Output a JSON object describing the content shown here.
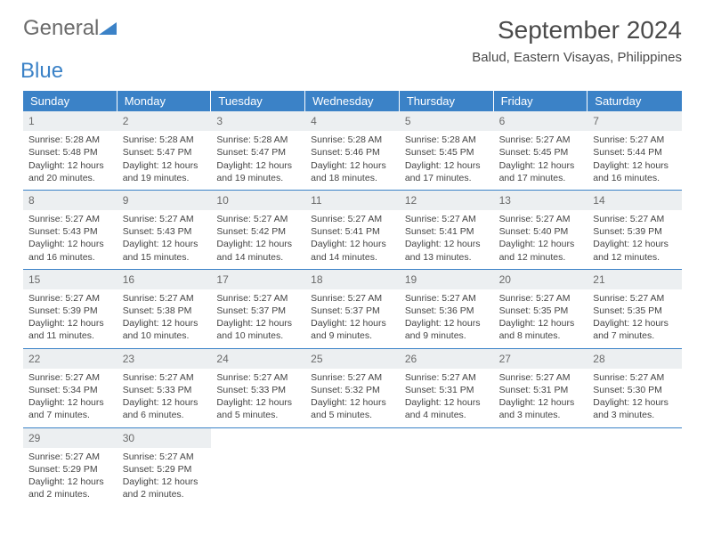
{
  "brand": {
    "name1": "General",
    "name2": "Blue"
  },
  "title": "September 2024",
  "location": "Balud, Eastern Visayas, Philippines",
  "colors": {
    "header_bg": "#3b82c7",
    "header_text": "#ffffff",
    "daynum_bg": "#eceff1",
    "daynum_text": "#6a6a6a",
    "body_text": "#444444",
    "rule": "#3b82c7"
  },
  "typography": {
    "title_fontsize": 28,
    "location_fontsize": 15,
    "weekday_fontsize": 13,
    "daynum_fontsize": 12,
    "body_fontsize": 10.5
  },
  "layout": {
    "columns": 7,
    "rows": 5
  },
  "weekdays": [
    "Sunday",
    "Monday",
    "Tuesday",
    "Wednesday",
    "Thursday",
    "Friday",
    "Saturday"
  ],
  "days": [
    {
      "n": "1",
      "sunrise": "Sunrise: 5:28 AM",
      "sunset": "Sunset: 5:48 PM",
      "daylight": "Daylight: 12 hours and 20 minutes."
    },
    {
      "n": "2",
      "sunrise": "Sunrise: 5:28 AM",
      "sunset": "Sunset: 5:47 PM",
      "daylight": "Daylight: 12 hours and 19 minutes."
    },
    {
      "n": "3",
      "sunrise": "Sunrise: 5:28 AM",
      "sunset": "Sunset: 5:47 PM",
      "daylight": "Daylight: 12 hours and 19 minutes."
    },
    {
      "n": "4",
      "sunrise": "Sunrise: 5:28 AM",
      "sunset": "Sunset: 5:46 PM",
      "daylight": "Daylight: 12 hours and 18 minutes."
    },
    {
      "n": "5",
      "sunrise": "Sunrise: 5:28 AM",
      "sunset": "Sunset: 5:45 PM",
      "daylight": "Daylight: 12 hours and 17 minutes."
    },
    {
      "n": "6",
      "sunrise": "Sunrise: 5:27 AM",
      "sunset": "Sunset: 5:45 PM",
      "daylight": "Daylight: 12 hours and 17 minutes."
    },
    {
      "n": "7",
      "sunrise": "Sunrise: 5:27 AM",
      "sunset": "Sunset: 5:44 PM",
      "daylight": "Daylight: 12 hours and 16 minutes."
    },
    {
      "n": "8",
      "sunrise": "Sunrise: 5:27 AM",
      "sunset": "Sunset: 5:43 PM",
      "daylight": "Daylight: 12 hours and 16 minutes."
    },
    {
      "n": "9",
      "sunrise": "Sunrise: 5:27 AM",
      "sunset": "Sunset: 5:43 PM",
      "daylight": "Daylight: 12 hours and 15 minutes."
    },
    {
      "n": "10",
      "sunrise": "Sunrise: 5:27 AM",
      "sunset": "Sunset: 5:42 PM",
      "daylight": "Daylight: 12 hours and 14 minutes."
    },
    {
      "n": "11",
      "sunrise": "Sunrise: 5:27 AM",
      "sunset": "Sunset: 5:41 PM",
      "daylight": "Daylight: 12 hours and 14 minutes."
    },
    {
      "n": "12",
      "sunrise": "Sunrise: 5:27 AM",
      "sunset": "Sunset: 5:41 PM",
      "daylight": "Daylight: 12 hours and 13 minutes."
    },
    {
      "n": "13",
      "sunrise": "Sunrise: 5:27 AM",
      "sunset": "Sunset: 5:40 PM",
      "daylight": "Daylight: 12 hours and 12 minutes."
    },
    {
      "n": "14",
      "sunrise": "Sunrise: 5:27 AM",
      "sunset": "Sunset: 5:39 PM",
      "daylight": "Daylight: 12 hours and 12 minutes."
    },
    {
      "n": "15",
      "sunrise": "Sunrise: 5:27 AM",
      "sunset": "Sunset: 5:39 PM",
      "daylight": "Daylight: 12 hours and 11 minutes."
    },
    {
      "n": "16",
      "sunrise": "Sunrise: 5:27 AM",
      "sunset": "Sunset: 5:38 PM",
      "daylight": "Daylight: 12 hours and 10 minutes."
    },
    {
      "n": "17",
      "sunrise": "Sunrise: 5:27 AM",
      "sunset": "Sunset: 5:37 PM",
      "daylight": "Daylight: 12 hours and 10 minutes."
    },
    {
      "n": "18",
      "sunrise": "Sunrise: 5:27 AM",
      "sunset": "Sunset: 5:37 PM",
      "daylight": "Daylight: 12 hours and 9 minutes."
    },
    {
      "n": "19",
      "sunrise": "Sunrise: 5:27 AM",
      "sunset": "Sunset: 5:36 PM",
      "daylight": "Daylight: 12 hours and 9 minutes."
    },
    {
      "n": "20",
      "sunrise": "Sunrise: 5:27 AM",
      "sunset": "Sunset: 5:35 PM",
      "daylight": "Daylight: 12 hours and 8 minutes."
    },
    {
      "n": "21",
      "sunrise": "Sunrise: 5:27 AM",
      "sunset": "Sunset: 5:35 PM",
      "daylight": "Daylight: 12 hours and 7 minutes."
    },
    {
      "n": "22",
      "sunrise": "Sunrise: 5:27 AM",
      "sunset": "Sunset: 5:34 PM",
      "daylight": "Daylight: 12 hours and 7 minutes."
    },
    {
      "n": "23",
      "sunrise": "Sunrise: 5:27 AM",
      "sunset": "Sunset: 5:33 PM",
      "daylight": "Daylight: 12 hours and 6 minutes."
    },
    {
      "n": "24",
      "sunrise": "Sunrise: 5:27 AM",
      "sunset": "Sunset: 5:33 PM",
      "daylight": "Daylight: 12 hours and 5 minutes."
    },
    {
      "n": "25",
      "sunrise": "Sunrise: 5:27 AM",
      "sunset": "Sunset: 5:32 PM",
      "daylight": "Daylight: 12 hours and 5 minutes."
    },
    {
      "n": "26",
      "sunrise": "Sunrise: 5:27 AM",
      "sunset": "Sunset: 5:31 PM",
      "daylight": "Daylight: 12 hours and 4 minutes."
    },
    {
      "n": "27",
      "sunrise": "Sunrise: 5:27 AM",
      "sunset": "Sunset: 5:31 PM",
      "daylight": "Daylight: 12 hours and 3 minutes."
    },
    {
      "n": "28",
      "sunrise": "Sunrise: 5:27 AM",
      "sunset": "Sunset: 5:30 PM",
      "daylight": "Daylight: 12 hours and 3 minutes."
    },
    {
      "n": "29",
      "sunrise": "Sunrise: 5:27 AM",
      "sunset": "Sunset: 5:29 PM",
      "daylight": "Daylight: 12 hours and 2 minutes."
    },
    {
      "n": "30",
      "sunrise": "Sunrise: 5:27 AM",
      "sunset": "Sunset: 5:29 PM",
      "daylight": "Daylight: 12 hours and 2 minutes."
    }
  ]
}
